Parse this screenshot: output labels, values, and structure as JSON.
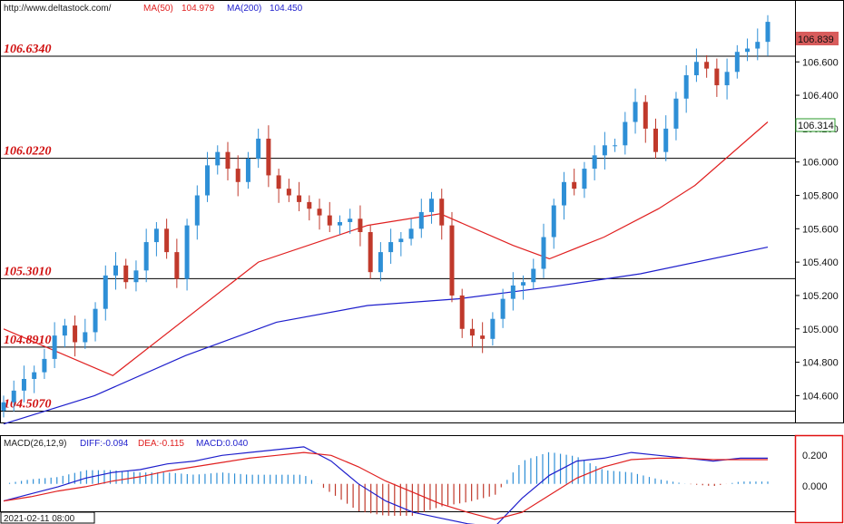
{
  "header": {
    "url": "http://www.deltastock.com/",
    "ma50_label": "MA(50)",
    "ma50_value": "104.979",
    "ma200_label": "MA(200)",
    "ma200_value": "104.450"
  },
  "colors": {
    "up_candle": "#2e8fd6",
    "down_candle": "#c0392b",
    "ma50": "#e02020",
    "ma200": "#1e1ecc",
    "level_text": "#d01010",
    "current_price_bg": "#d85c5c",
    "ref_price_border": "#2a9a2a",
    "macd_panel_border": "#e01010"
  },
  "price_axis": {
    "ticks": [
      "106.600",
      "106.400",
      "106.200",
      "106.000",
      "105.800",
      "105.600",
      "105.400",
      "105.200",
      "105.000",
      "104.800",
      "104.600"
    ],
    "current_price": "106.839",
    "reference_price": "106.314"
  },
  "levels": [
    {
      "label": "106.6340",
      "value": 106.634
    },
    {
      "label": "106.0220",
      "value": 106.022
    },
    {
      "label": "105.3010",
      "value": 105.301
    },
    {
      "label": "104.8910",
      "value": 104.891
    },
    {
      "label": "104.5070",
      "value": 104.507
    }
  ],
  "macd": {
    "label": "MACD(26,12,9)",
    "diff": "DIFF:-0.094",
    "dea": "DEA:-0.115",
    "macd": "MACD:0.040",
    "ticks": [
      "0.200",
      "0.000"
    ]
  },
  "footer": {
    "start_time": "2021-02-11 08:00"
  },
  "chart_data": {
    "type": "candlestick",
    "title": "",
    "instrument": "",
    "ylim": [
      104.45,
      106.96
    ],
    "series": [
      {
        "name": "Price",
        "close_path": [
          104.56,
          104.63,
          104.7,
          104.74,
          104.82,
          104.96,
          105.02,
          104.92,
          104.98,
          105.12,
          105.32,
          105.38,
          105.28,
          105.35,
          105.52,
          105.6,
          105.46,
          105.3,
          105.62,
          105.8,
          105.98,
          106.06,
          105.96,
          105.88,
          106.02,
          106.14,
          105.92,
          105.84,
          105.8,
          105.76,
          105.72,
          105.68,
          105.62,
          105.64,
          105.66,
          105.58,
          105.34,
          105.46,
          105.52,
          105.54,
          105.6,
          105.7,
          105.78,
          105.62,
          105.2,
          105.0,
          104.96,
          104.94,
          105.06,
          105.18,
          105.26,
          105.28,
          105.36,
          105.55,
          105.74,
          105.88,
          105.84,
          105.96,
          106.04,
          106.1,
          106.1,
          106.24,
          106.36,
          106.2,
          106.06,
          106.2,
          106.38,
          106.52,
          106.6,
          106.56,
          106.46,
          106.54,
          106.66,
          106.68,
          106.72,
          106.84
        ]
      },
      {
        "name": "MA(50)",
        "points": [
          [
            0,
            105.0
          ],
          [
            12,
            104.72
          ],
          [
            28,
            105.4
          ],
          [
            40,
            105.62
          ],
          [
            48,
            105.69
          ],
          [
            56,
            105.5
          ],
          [
            60,
            105.42
          ],
          [
            66,
            105.55
          ],
          [
            72,
            105.72
          ],
          [
            76,
            105.86
          ],
          [
            84,
            106.24
          ]
        ]
      },
      {
        "name": "MA(200)",
        "points": [
          [
            0,
            104.43
          ],
          [
            10,
            104.6
          ],
          [
            20,
            104.84
          ],
          [
            30,
            105.04
          ],
          [
            40,
            105.14
          ],
          [
            50,
            105.18
          ],
          [
            60,
            105.25
          ],
          [
            70,
            105.33
          ],
          [
            84,
            105.49
          ]
        ]
      }
    ],
    "macd_series": {
      "diff": [
        -0.12,
        -0.07,
        -0.02,
        0.04,
        0.08,
        0.1,
        0.14,
        0.16,
        0.2,
        0.22,
        0.24,
        0.26,
        0.16,
        0.0,
        -0.12,
        -0.2,
        -0.24,
        -0.28,
        -0.3,
        -0.1,
        0.06,
        0.16,
        0.18,
        0.22,
        0.2,
        0.18,
        0.16,
        0.18,
        0.18
      ],
      "dea": [
        -0.12,
        -0.09,
        -0.05,
        -0.02,
        0.02,
        0.05,
        0.09,
        0.12,
        0.15,
        0.18,
        0.2,
        0.22,
        0.2,
        0.12,
        0.02,
        -0.06,
        -0.14,
        -0.2,
        -0.25,
        -0.2,
        -0.08,
        0.04,
        0.12,
        0.17,
        0.18,
        0.18,
        0.17,
        0.17,
        0.17
      ],
      "ylim": [
        -0.18,
        0.24
      ]
    }
  }
}
